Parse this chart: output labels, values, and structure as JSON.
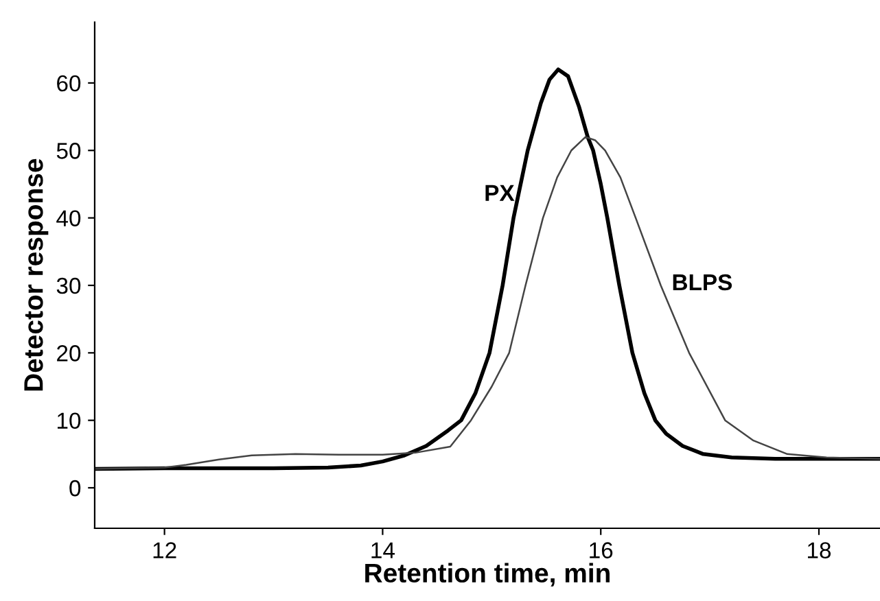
{
  "chart_data": {
    "type": "line",
    "xlabel": "Retention time, min",
    "ylabel": "Detector response",
    "xlim": [
      11.36,
      18.56
    ],
    "ylim": [
      -6,
      69
    ],
    "xticks": [
      12,
      14,
      16,
      18
    ],
    "yticks": [
      0,
      10,
      20,
      30,
      40,
      50,
      60
    ],
    "grid": false,
    "legend": false,
    "marker": "none",
    "line_style": "solid",
    "series": [
      {
        "name": "PX",
        "color": "#000000",
        "x": [
          11.36,
          12,
          13,
          13.5,
          13.8,
          14.0,
          14.2,
          14.4,
          14.6,
          14.72,
          14.85,
          14.98,
          15.1,
          15.2,
          15.33,
          15.45,
          15.53,
          15.61,
          15.7,
          15.8,
          15.88,
          15.93,
          16.0,
          16.06,
          16.17,
          16.29,
          16.4,
          16.5,
          16.6,
          16.75,
          16.94,
          17.2,
          17.6,
          18.56
        ],
        "values": [
          2.8,
          2.9,
          2.9,
          3.0,
          3.3,
          3.9,
          4.8,
          6.2,
          8.5,
          10,
          14,
          20,
          30,
          40,
          50,
          57,
          60.5,
          62,
          61,
          56.5,
          52,
          50,
          45,
          40,
          30,
          20,
          14,
          10,
          8,
          6.2,
          5,
          4.5,
          4.3,
          4.3
        ]
      },
      {
        "name": "BLPS",
        "color": "#444444",
        "x": [
          11.36,
          12.0,
          12.2,
          12.5,
          12.8,
          13.2,
          13.6,
          14.0,
          14.3,
          14.62,
          14.81,
          15.0,
          15.16,
          15.31,
          15.47,
          15.6,
          15.73,
          15.86,
          15.95,
          16.04,
          16.18,
          16.32,
          16.55,
          16.81,
          17.14,
          17.4,
          17.71,
          18.07,
          18.56
        ],
        "values": [
          2.8,
          3.0,
          3.4,
          4.2,
          4.8,
          5.0,
          4.9,
          4.9,
          5.2,
          6.1,
          10,
          15,
          20,
          30,
          40,
          46,
          50,
          52,
          51.5,
          50,
          46,
          40,
          30,
          20,
          10,
          7,
          5,
          4.5,
          4.3
        ]
      }
    ]
  }
}
